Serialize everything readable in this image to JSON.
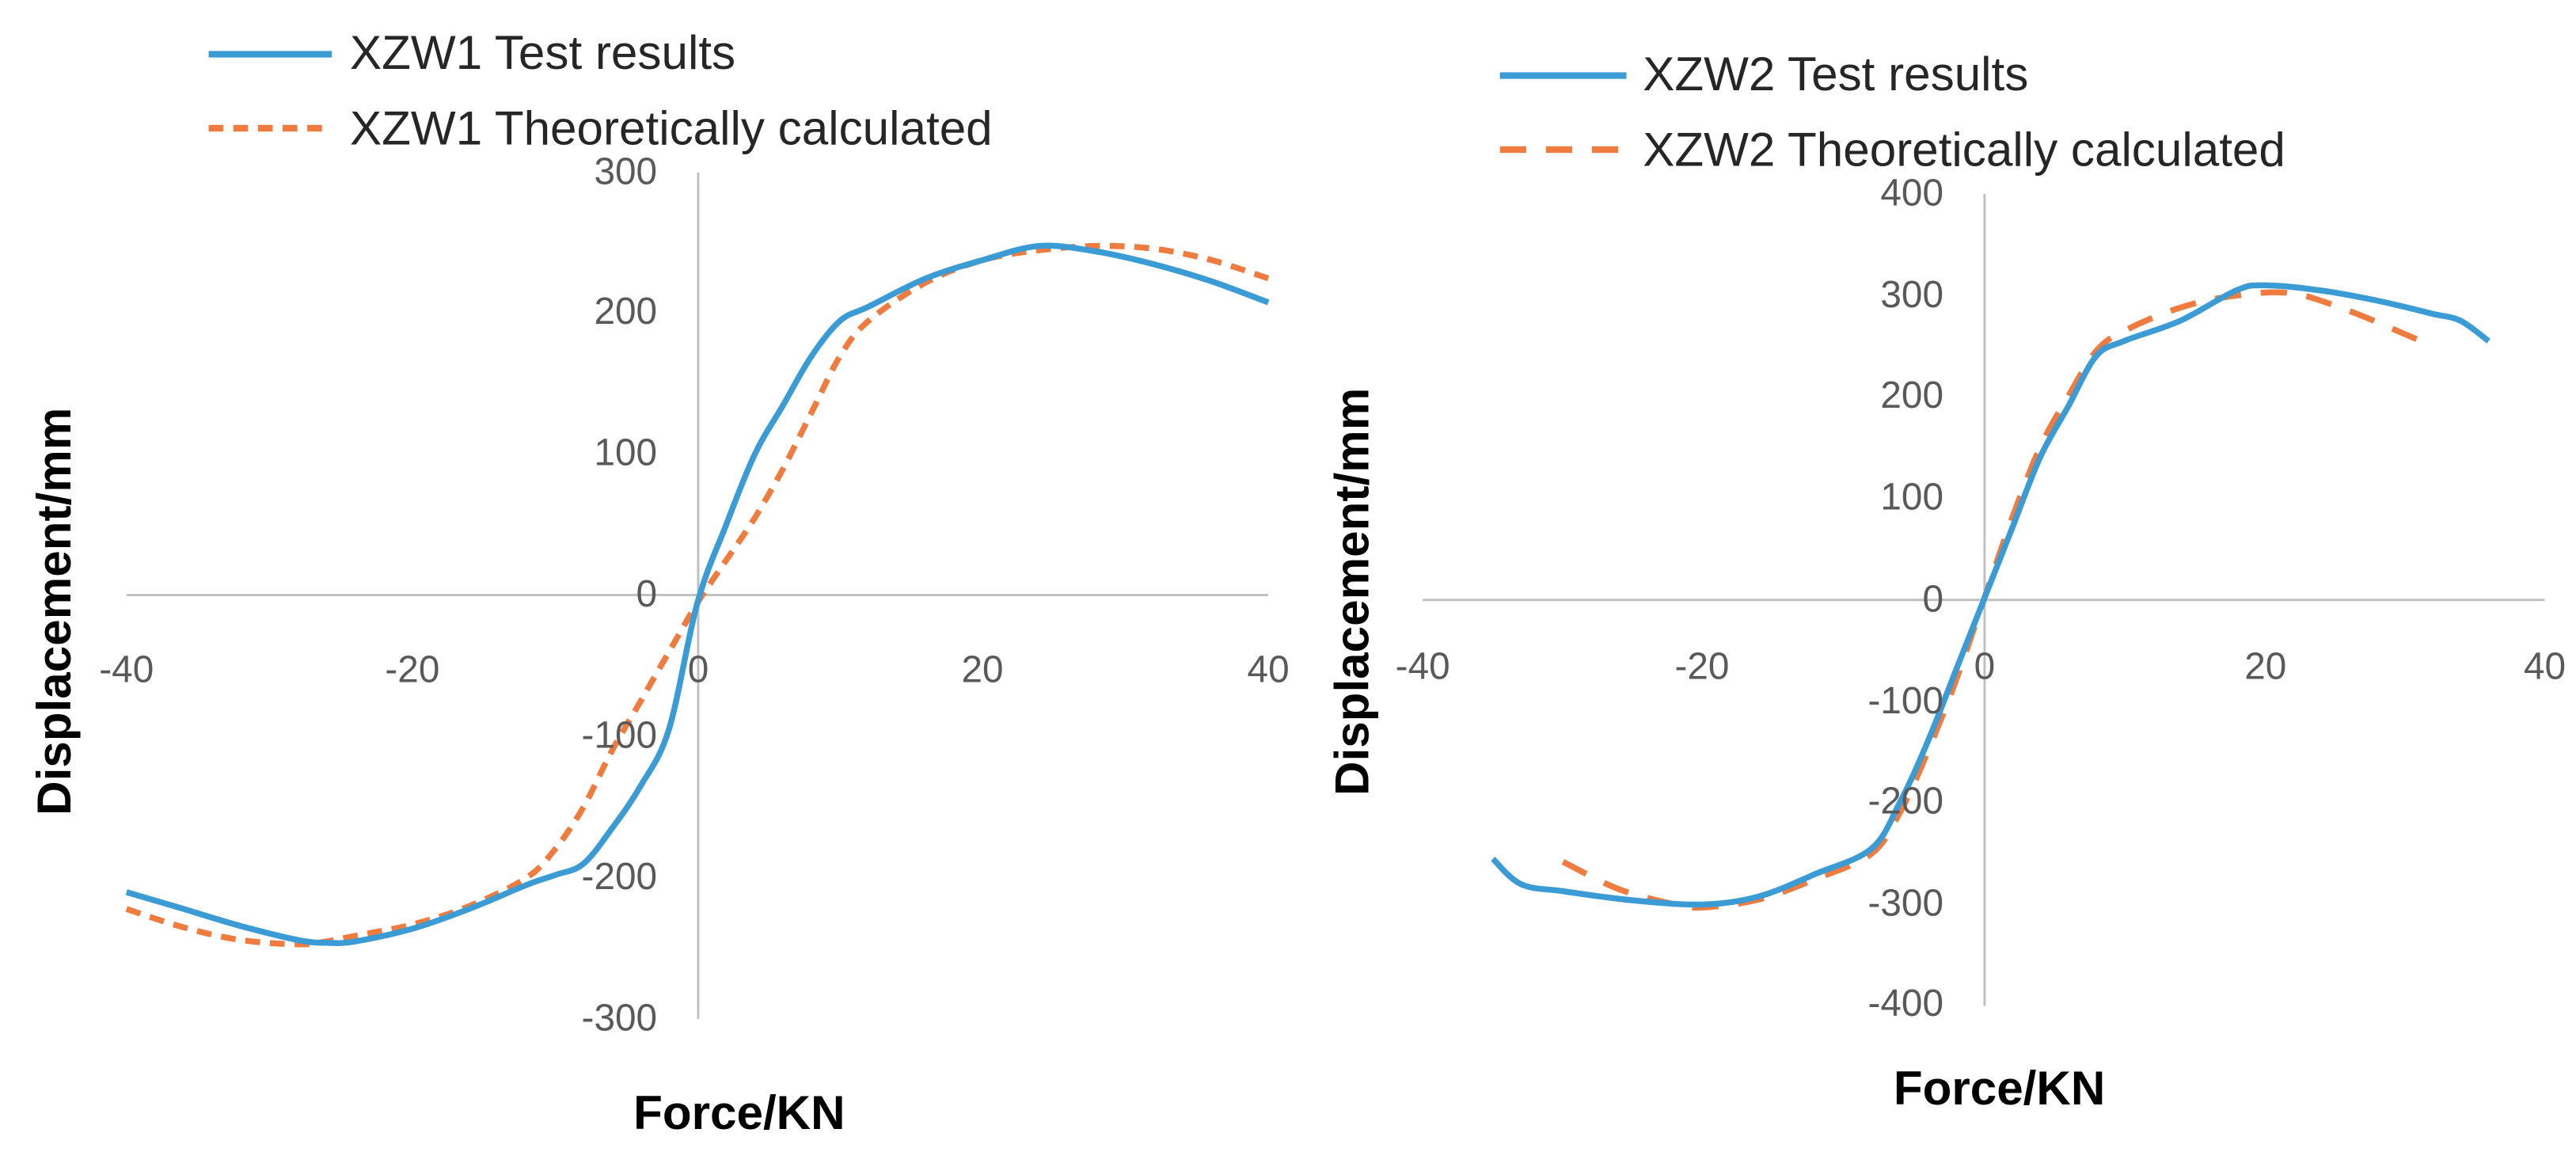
{
  "chart_data": [
    {
      "type": "line",
      "xlabel": "Force/KN",
      "ylabel": "Displacement/mm",
      "xlim": [
        -40,
        40
      ],
      "ylim": [
        -300,
        300
      ],
      "xticks": [
        "-40",
        "-20",
        "0",
        "20",
        "40"
      ],
      "yticks": [
        "300",
        "200",
        "100",
        "0",
        "-100",
        "-200",
        "-300"
      ],
      "series": [
        {
          "name": "XZW1 Test results",
          "color": "#3A9BD5",
          "style": "solid",
          "x": [
            -40,
            -36,
            -32,
            -28,
            -26,
            -24,
            -20,
            -16,
            -12,
            -10,
            -8,
            -6,
            -4,
            -2,
            0,
            2,
            4,
            6,
            8,
            10,
            12,
            16,
            20,
            24,
            28,
            32,
            36,
            40
          ],
          "y": [
            -210,
            -222,
            -234,
            -244,
            -246,
            -245,
            -236,
            -222,
            -205,
            -198,
            -190,
            -165,
            -135,
            -95,
            -5,
            50,
            100,
            135,
            170,
            195,
            205,
            225,
            238,
            248,
            244,
            235,
            223,
            208
          ]
        },
        {
          "name": "XZW1 Theoretically calculated",
          "color": "#F07B3F",
          "style": "dashed",
          "x": [
            -40,
            -36,
            -32,
            -28,
            -26,
            -24,
            -20,
            -16,
            -12,
            -10,
            -8,
            -6,
            -4,
            -2,
            0,
            2,
            4,
            6,
            8,
            10,
            12,
            16,
            20,
            24,
            28,
            32,
            36,
            40
          ],
          "y": [
            -222,
            -235,
            -244,
            -247,
            -245,
            -241,
            -233,
            -220,
            -200,
            -180,
            -150,
            -110,
            -75,
            -40,
            -5,
            25,
            55,
            90,
            130,
            170,
            195,
            222,
            238,
            245,
            248,
            246,
            238,
            225
          ]
        }
      ]
    },
    {
      "type": "line",
      "xlabel": "Force/KN",
      "ylabel": "Displacement/mm",
      "xlim": [
        -40,
        40
      ],
      "ylim": [
        -400,
        400
      ],
      "xticks": [
        "-40",
        "-20",
        "0",
        "20",
        "40"
      ],
      "yticks": [
        "400",
        "300",
        "200",
        "100",
        "0",
        "-100",
        "-200",
        "-300",
        "-400"
      ],
      "series": [
        {
          "name": "XZW2 Test results",
          "color": "#3A9BD5",
          "style": "solid",
          "x": [
            -35,
            -33,
            -30,
            -25,
            -20,
            -16,
            -12,
            -8,
            -6,
            -4,
            -2,
            0,
            2,
            4,
            6,
            8,
            10,
            14,
            18,
            20,
            24,
            28,
            32,
            34,
            36
          ],
          "y": [
            -255,
            -280,
            -287,
            -296,
            -300,
            -292,
            -270,
            -245,
            -200,
            -140,
            -70,
            0,
            70,
            140,
            190,
            240,
            255,
            275,
            305,
            310,
            305,
            295,
            282,
            275,
            255
          ]
        },
        {
          "name": "XZW2 Theoretically calculated",
          "color": "#F07B3F",
          "style": "dashed",
          "x": [
            -30,
            -26,
            -22,
            -20,
            -16,
            -12,
            -8,
            -6,
            -4,
            -2,
            0,
            2,
            4,
            6,
            8,
            10,
            14,
            18,
            22,
            26,
            30,
            32
          ],
          "y": [
            -258,
            -285,
            -300,
            -303,
            -295,
            -275,
            -250,
            -210,
            -150,
            -80,
            0,
            80,
            150,
            200,
            245,
            265,
            288,
            300,
            302,
            285,
            262,
            250
          ]
        }
      ]
    }
  ]
}
